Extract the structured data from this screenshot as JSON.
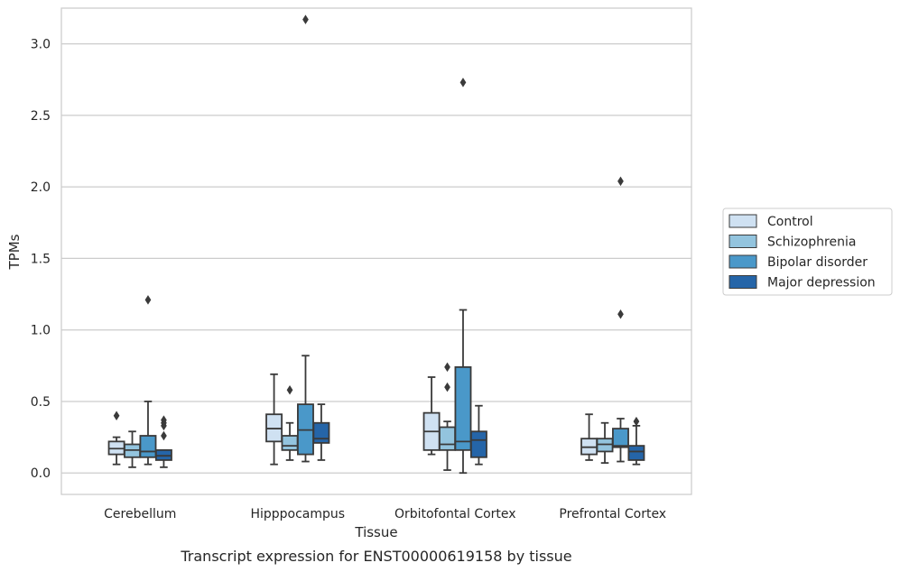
{
  "chart_data": {
    "type": "box",
    "xlabel": "Tissue",
    "ylabel": "TPMs",
    "caption": "Transcript expression for ENST00000619158 by tissue",
    "ylim": [
      -0.15,
      3.25
    ],
    "yticks": [
      0.0,
      0.5,
      1.0,
      1.5,
      2.0,
      2.5,
      3.0
    ],
    "ytick_labels": [
      "0.0",
      "0.5",
      "1.0",
      "1.5",
      "2.0",
      "2.5",
      "3.0"
    ],
    "grid": "horizontal",
    "legend_position": "right",
    "categories": [
      "Cerebellum",
      "Hipppocampus",
      "Orbitofontal Cortex",
      "Prefrontal Cortex"
    ],
    "series": [
      {
        "name": "Control",
        "color": "#cfe1f2",
        "boxes": [
          {
            "whislo": 0.06,
            "q1": 0.13,
            "med": 0.17,
            "q3": 0.22,
            "whishi": 0.25,
            "fliers": [
              0.4
            ]
          },
          {
            "whislo": 0.06,
            "q1": 0.22,
            "med": 0.31,
            "q3": 0.41,
            "whishi": 0.69,
            "fliers": []
          },
          {
            "whislo": 0.13,
            "q1": 0.16,
            "med": 0.29,
            "q3": 0.42,
            "whishi": 0.67,
            "fliers": []
          },
          {
            "whislo": 0.09,
            "q1": 0.13,
            "med": 0.18,
            "q3": 0.24,
            "whishi": 0.41,
            "fliers": []
          }
        ]
      },
      {
        "name": "Schizophrenia",
        "color": "#93c4de",
        "boxes": [
          {
            "whislo": 0.04,
            "q1": 0.11,
            "med": 0.16,
            "q3": 0.2,
            "whishi": 0.29,
            "fliers": []
          },
          {
            "whislo": 0.09,
            "q1": 0.16,
            "med": 0.19,
            "q3": 0.26,
            "whishi": 0.35,
            "fliers": [
              0.58
            ]
          },
          {
            "whislo": 0.02,
            "q1": 0.16,
            "med": 0.2,
            "q3": 0.32,
            "whishi": 0.36,
            "fliers": [
              0.6,
              0.74
            ]
          },
          {
            "whislo": 0.07,
            "q1": 0.15,
            "med": 0.2,
            "q3": 0.24,
            "whishi": 0.35,
            "fliers": []
          }
        ]
      },
      {
        "name": "Bipolar disorder",
        "color": "#4a98c9",
        "boxes": [
          {
            "whislo": 0.06,
            "q1": 0.11,
            "med": 0.15,
            "q3": 0.26,
            "whishi": 0.5,
            "fliers": [
              1.21
            ]
          },
          {
            "whislo": 0.08,
            "q1": 0.13,
            "med": 0.3,
            "q3": 0.48,
            "whishi": 0.82,
            "fliers": [
              3.17
            ]
          },
          {
            "whislo": 0.0,
            "q1": 0.16,
            "med": 0.22,
            "q3": 0.74,
            "whishi": 1.14,
            "fliers": [
              2.73
            ]
          },
          {
            "whislo": 0.08,
            "q1": 0.18,
            "med": 0.19,
            "q3": 0.31,
            "whishi": 0.38,
            "fliers": [
              1.11,
              2.04
            ]
          }
        ]
      },
      {
        "name": "Major depression",
        "color": "#2565a8",
        "boxes": [
          {
            "whislo": 0.04,
            "q1": 0.09,
            "med": 0.12,
            "q3": 0.16,
            "whishi": 0.16,
            "fliers": [
              0.26,
              0.33,
              0.35,
              0.37
            ]
          },
          {
            "whislo": 0.09,
            "q1": 0.21,
            "med": 0.24,
            "q3": 0.35,
            "whishi": 0.48,
            "fliers": []
          },
          {
            "whislo": 0.06,
            "q1": 0.11,
            "med": 0.23,
            "q3": 0.29,
            "whishi": 0.47,
            "fliers": []
          },
          {
            "whislo": 0.06,
            "q1": 0.09,
            "med": 0.15,
            "q3": 0.19,
            "whishi": 0.33,
            "fliers": [
              0.36
            ]
          }
        ]
      }
    ]
  }
}
